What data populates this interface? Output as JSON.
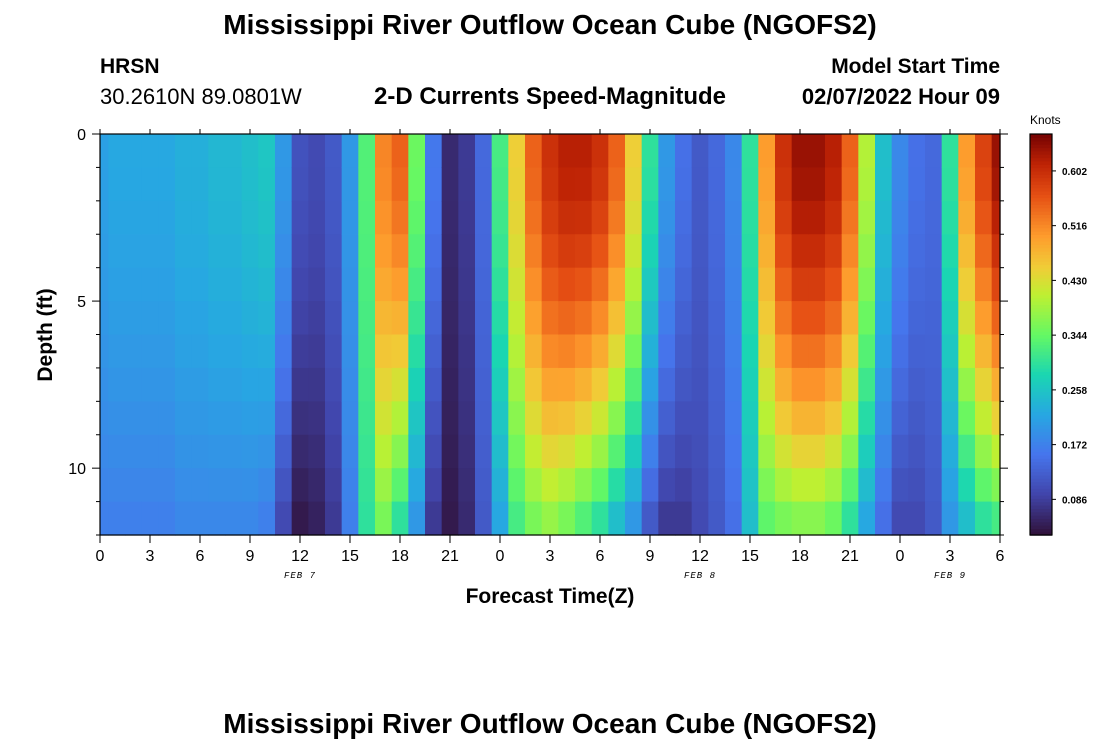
{
  "page": {
    "title_top": "Mississippi River Outflow Ocean Cube (NGOFS2)",
    "title_bottom": "Mississippi River Outflow Ocean Cube (NGOFS2)",
    "station_id": "HRSN",
    "station_coords": "30.2610N  89.0801W",
    "subtitle": "2-D Currents Speed-Magnitude",
    "model_start_label": "Model Start Time",
    "model_start_value": "02/07/2022 Hour 09"
  },
  "chart_data": {
    "type": "heatmap",
    "title": "2-D Currents Speed-Magnitude",
    "xlabel": "Forecast Time(Z)",
    "ylabel": "Depth (ft)",
    "units": "Knots",
    "x_tick_labels": [
      "0",
      "3",
      "6",
      "9",
      "12",
      "15",
      "18",
      "21",
      "0",
      "3",
      "6",
      "9",
      "12",
      "15",
      "18",
      "21",
      "0",
      "3",
      "6"
    ],
    "x_range_hours": [
      0,
      54
    ],
    "date_labels": [
      {
        "label": "FEB 7",
        "hour": 12
      },
      {
        "label": "FEB 8",
        "hour": 36
      },
      {
        "label": "FEB 9",
        "hour": 51
      }
    ],
    "y_tick_labels": [
      "0",
      "5",
      "10"
    ],
    "y_ticks": [
      0,
      5,
      10
    ],
    "y_range_ft": [
      0,
      12
    ],
    "colorbar_ticks": [
      0.086,
      0.172,
      0.258,
      0.344,
      0.43,
      0.516,
      0.602
    ],
    "colorbar_tick_labels": [
      "0.086",
      "0.172",
      "0.258",
      "0.344",
      "0.430",
      "0.516",
      "0.602"
    ],
    "colorbar_range": [
      0.03,
      0.66
    ],
    "hours": [
      0,
      1,
      2,
      3,
      4,
      5,
      6,
      7,
      8,
      9,
      10,
      11,
      12,
      13,
      14,
      15,
      16,
      17,
      18,
      19,
      20,
      21,
      22,
      23,
      24,
      25,
      26,
      27,
      28,
      29,
      30,
      31,
      32,
      33,
      34,
      35,
      36,
      37,
      38,
      39,
      40,
      41,
      42,
      43,
      44,
      45,
      46,
      47,
      48,
      49,
      50,
      51,
      52,
      53,
      54
    ],
    "surface_speed": [
      0.21,
      0.22,
      0.22,
      0.22,
      0.22,
      0.23,
      0.23,
      0.24,
      0.24,
      0.25,
      0.26,
      0.2,
      0.11,
      0.1,
      0.12,
      0.2,
      0.33,
      0.52,
      0.55,
      0.35,
      0.16,
      0.06,
      0.08,
      0.14,
      0.32,
      0.45,
      0.55,
      0.6,
      0.62,
      0.62,
      0.6,
      0.55,
      0.45,
      0.3,
      0.2,
      0.15,
      0.12,
      0.14,
      0.18,
      0.3,
      0.5,
      0.6,
      0.64,
      0.64,
      0.62,
      0.55,
      0.4,
      0.25,
      0.18,
      0.15,
      0.14,
      0.3,
      0.5,
      0.58,
      0.64
    ],
    "bottom_speed": [
      0.17,
      0.17,
      0.17,
      0.17,
      0.17,
      0.18,
      0.18,
      0.18,
      0.18,
      0.18,
      0.17,
      0.1,
      0.04,
      0.05,
      0.08,
      0.17,
      0.3,
      0.36,
      0.3,
      0.2,
      0.08,
      0.04,
      0.06,
      0.12,
      0.22,
      0.32,
      0.36,
      0.38,
      0.36,
      0.33,
      0.3,
      0.25,
      0.2,
      0.12,
      0.08,
      0.08,
      0.1,
      0.12,
      0.15,
      0.25,
      0.34,
      0.36,
      0.37,
      0.37,
      0.35,
      0.3,
      0.22,
      0.15,
      0.1,
      0.1,
      0.12,
      0.2,
      0.25,
      0.3,
      0.32
    ],
    "depth_levels_ft": [
      0,
      1,
      2,
      3,
      4,
      5,
      6,
      7,
      8,
      9,
      10,
      11
    ]
  }
}
